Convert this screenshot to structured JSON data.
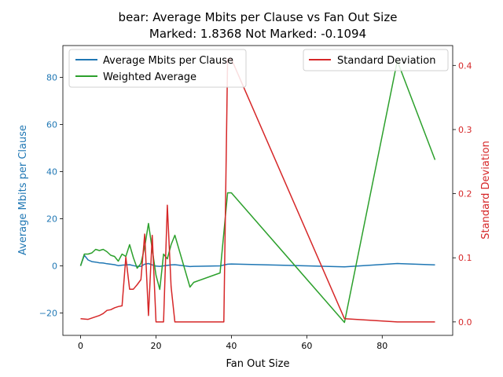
{
  "chart_data": {
    "type": "line",
    "title": "bear: Average Mbits per Clause vs Fan Out Size",
    "subtitle": "Marked: 1.8368 Not Marked: -0.1094",
    "xlabel": "Fan Out Size",
    "ylabel_left": "Average Mbits per Clause",
    "ylabel_right": "Standard Deviation",
    "xlim": [
      -4.7,
      98.7
    ],
    "ylim_left": [
      -29.5,
      93.5
    ],
    "ylim_right": [
      -0.021,
      0.431
    ],
    "x_ticks": [
      0,
      20,
      40,
      60,
      80
    ],
    "y_ticks_left": [
      -20,
      0,
      20,
      40,
      60,
      80
    ],
    "y_ticks_right": [
      0.0,
      0.1,
      0.2,
      0.3,
      0.4
    ],
    "x_tick_labels": [
      "0",
      "20",
      "40",
      "60",
      "80"
    ],
    "y_tick_labels_left": [
      "−20",
      "0",
      "20",
      "40",
      "60",
      "80"
    ],
    "y_tick_labels_right": [
      "0.0",
      "0.1",
      "0.2",
      "0.3",
      "0.4"
    ],
    "grid": false,
    "legend_left": {
      "placement": "upper left",
      "entries": [
        "Average Mbits per Clause",
        "Weighted Average"
      ]
    },
    "legend_right": {
      "placement": "upper right",
      "entries": [
        "Standard Deviation"
      ]
    },
    "colors": {
      "avg": "#1f77b4",
      "weighted": "#2ca02c",
      "std": "#d62728",
      "left_axis": "#1f77b4",
      "right_axis": "#d62728"
    },
    "series": [
      {
        "name": "Average Mbits per Clause",
        "axis": "left",
        "color": "#1f77b4",
        "x": [
          0,
          1,
          2,
          3,
          4,
          5,
          6,
          7,
          8,
          9,
          10,
          11,
          12,
          13,
          14,
          15,
          16,
          17,
          18,
          19,
          20,
          21,
          22,
          23,
          24,
          25,
          29,
          30,
          37,
          39,
          40,
          70,
          84,
          94
        ],
        "y": [
          0,
          4.5,
          2.5,
          1.8,
          1.6,
          1.3,
          1.2,
          0.9,
          0.7,
          0.5,
          0.1,
          0.3,
          0.4,
          0.5,
          0.1,
          -0.2,
          -0.2,
          0.7,
          1.0,
          0.4,
          -0.1,
          -0.2,
          0.0,
          0.2,
          0.4,
          0.5,
          -0.3,
          -0.2,
          0.0,
          0.7,
          0.8,
          -0.4,
          1.0,
          0.4
        ]
      },
      {
        "name": "Weighted Average",
        "axis": "left",
        "color": "#2ca02c",
        "x": [
          0,
          1,
          2,
          3,
          4,
          5,
          6,
          7,
          8,
          9,
          10,
          11,
          12,
          13,
          14,
          15,
          16,
          17,
          18,
          19,
          20,
          21,
          22,
          23,
          24,
          25,
          29,
          30,
          37,
          39,
          40,
          70,
          84,
          94
        ],
        "y": [
          0,
          5,
          5,
          5.5,
          7,
          6.5,
          7,
          6,
          4.5,
          4,
          2,
          5,
          4,
          9,
          3.5,
          -1,
          1,
          8,
          18,
          7,
          -4,
          -10,
          5,
          3,
          9,
          13,
          -9,
          -7,
          -3,
          31,
          31,
          -24,
          87,
          45
        ]
      },
      {
        "name": "Standard Deviation",
        "axis": "right",
        "color": "#d62728",
        "x": [
          0,
          2,
          5,
          6,
          7,
          8,
          9,
          10,
          11,
          12,
          13,
          14,
          15,
          16,
          17,
          18,
          19,
          20,
          21,
          22,
          23,
          24,
          25,
          29,
          30,
          37,
          38,
          39,
          40,
          70,
          84,
          94
        ],
        "y": [
          0.005,
          0.004,
          0.01,
          0.013,
          0.018,
          0.019,
          0.022,
          0.024,
          0.025,
          0.101,
          0.051,
          0.051,
          0.058,
          0.066,
          0.137,
          0.01,
          0.135,
          0.0,
          0.0,
          0.0,
          0.182,
          0.055,
          0.0,
          0.0,
          0.0,
          0.0,
          0.0,
          0.41,
          0.41,
          0.005,
          0.0,
          0.0
        ]
      }
    ]
  }
}
